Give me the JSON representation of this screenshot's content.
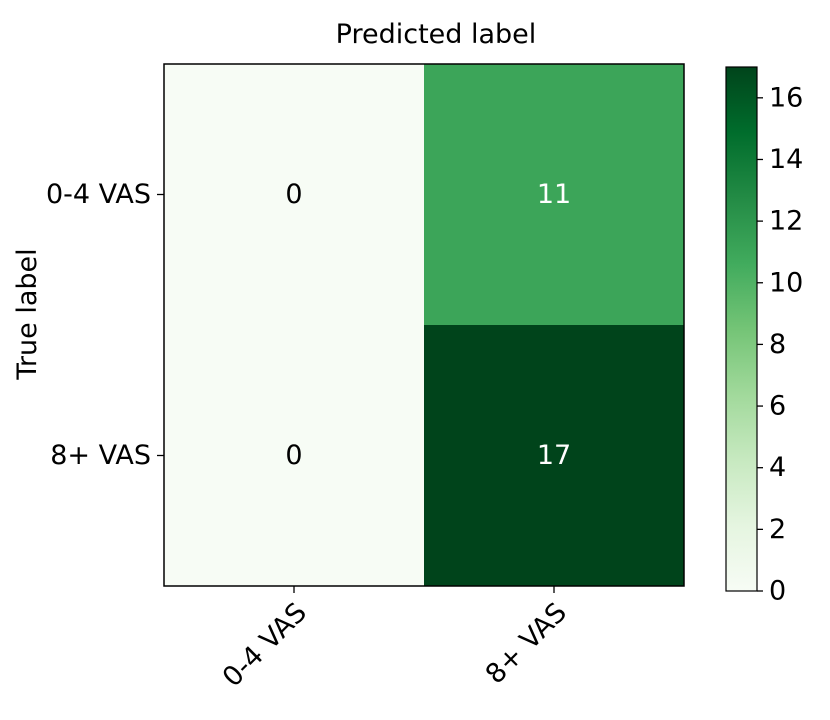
{
  "chart_data": {
    "type": "heatmap",
    "title": "Predicted label",
    "xlabel": "",
    "ylabel": "True label",
    "x_categories": [
      "0-4 VAS",
      "8+ VAS"
    ],
    "y_categories": [
      "0-4 VAS",
      "8+ VAS"
    ],
    "values": [
      [
        0,
        11
      ],
      [
        0,
        17
      ]
    ],
    "colorbar": {
      "min": 0,
      "max": 17,
      "ticks": [
        0,
        2,
        4,
        6,
        8,
        10,
        12,
        14,
        16
      ],
      "colormap": "Greens",
      "colors": [
        "#f7fcf5",
        "#e5f5e0",
        "#c7e9c0",
        "#a1d99b",
        "#74c476",
        "#41ab5d",
        "#238b45",
        "#006d2c",
        "#00441b"
      ]
    },
    "annotation_colors": {
      "light": "#ffffff",
      "dark": "#000000"
    },
    "grid": false
  }
}
